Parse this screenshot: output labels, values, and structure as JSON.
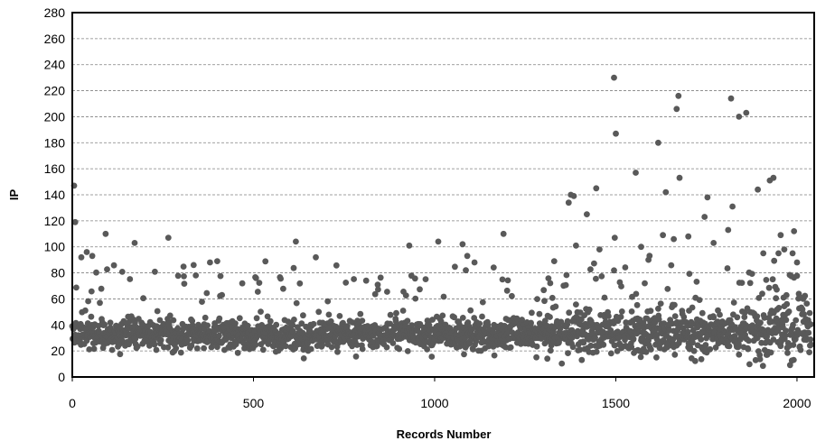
{
  "chart_data": {
    "type": "scatter",
    "title": "",
    "xlabel": "Records Number",
    "ylabel": "IP",
    "xlim": [
      0,
      2050
    ],
    "ylim": [
      0,
      280
    ],
    "x_ticks": [
      0,
      500,
      1000,
      1500,
      2000
    ],
    "y_ticks": [
      0,
      20,
      40,
      60,
      80,
      100,
      120,
      140,
      160,
      180,
      200,
      220,
      240,
      260,
      280
    ],
    "grid": "horizontal-dashed",
    "marker_color": "#595959",
    "n_points": 2040,
    "typical_range": [
      10,
      65
    ],
    "baseline_mean": 33,
    "outliers": [
      {
        "x": 5,
        "y": 147
      },
      {
        "x": 8,
        "y": 119
      },
      {
        "x": 25,
        "y": 92
      },
      {
        "x": 40,
        "y": 96
      },
      {
        "x": 55,
        "y": 93
      },
      {
        "x": 92,
        "y": 110
      },
      {
        "x": 172,
        "y": 103
      },
      {
        "x": 265,
        "y": 107
      },
      {
        "x": 335,
        "y": 86
      },
      {
        "x": 380,
        "y": 88
      },
      {
        "x": 400,
        "y": 89
      },
      {
        "x": 617,
        "y": 104
      },
      {
        "x": 672,
        "y": 92
      },
      {
        "x": 930,
        "y": 101
      },
      {
        "x": 1010,
        "y": 104
      },
      {
        "x": 1077,
        "y": 102
      },
      {
        "x": 1090,
        "y": 93
      },
      {
        "x": 1110,
        "y": 88
      },
      {
        "x": 1190,
        "y": 110
      },
      {
        "x": 1330,
        "y": 89
      },
      {
        "x": 1370,
        "y": 134
      },
      {
        "x": 1376,
        "y": 140
      },
      {
        "x": 1384,
        "y": 139
      },
      {
        "x": 1390,
        "y": 101
      },
      {
        "x": 1420,
        "y": 125
      },
      {
        "x": 1446,
        "y": 145
      },
      {
        "x": 1455,
        "y": 98
      },
      {
        "x": 1495,
        "y": 230
      },
      {
        "x": 1500,
        "y": 187
      },
      {
        "x": 1497,
        "y": 107
      },
      {
        "x": 1555,
        "y": 157
      },
      {
        "x": 1570,
        "y": 100
      },
      {
        "x": 1590,
        "y": 90
      },
      {
        "x": 1617,
        "y": 180
      },
      {
        "x": 1630,
        "y": 109
      },
      {
        "x": 1638,
        "y": 142
      },
      {
        "x": 1660,
        "y": 106
      },
      {
        "x": 1668,
        "y": 206
      },
      {
        "x": 1673,
        "y": 216
      },
      {
        "x": 1676,
        "y": 153
      },
      {
        "x": 1700,
        "y": 108
      },
      {
        "x": 1745,
        "y": 123
      },
      {
        "x": 1753,
        "y": 138
      },
      {
        "x": 1770,
        "y": 103
      },
      {
        "x": 1810,
        "y": 113
      },
      {
        "x": 1818,
        "y": 214
      },
      {
        "x": 1822,
        "y": 131
      },
      {
        "x": 1840,
        "y": 200
      },
      {
        "x": 1860,
        "y": 203
      },
      {
        "x": 1892,
        "y": 144
      },
      {
        "x": 1925,
        "y": 151
      },
      {
        "x": 1935,
        "y": 153
      },
      {
        "x": 1955,
        "y": 109
      },
      {
        "x": 1965,
        "y": 98
      },
      {
        "x": 1992,
        "y": 112
      },
      {
        "x": 2000,
        "y": 88
      }
    ]
  }
}
